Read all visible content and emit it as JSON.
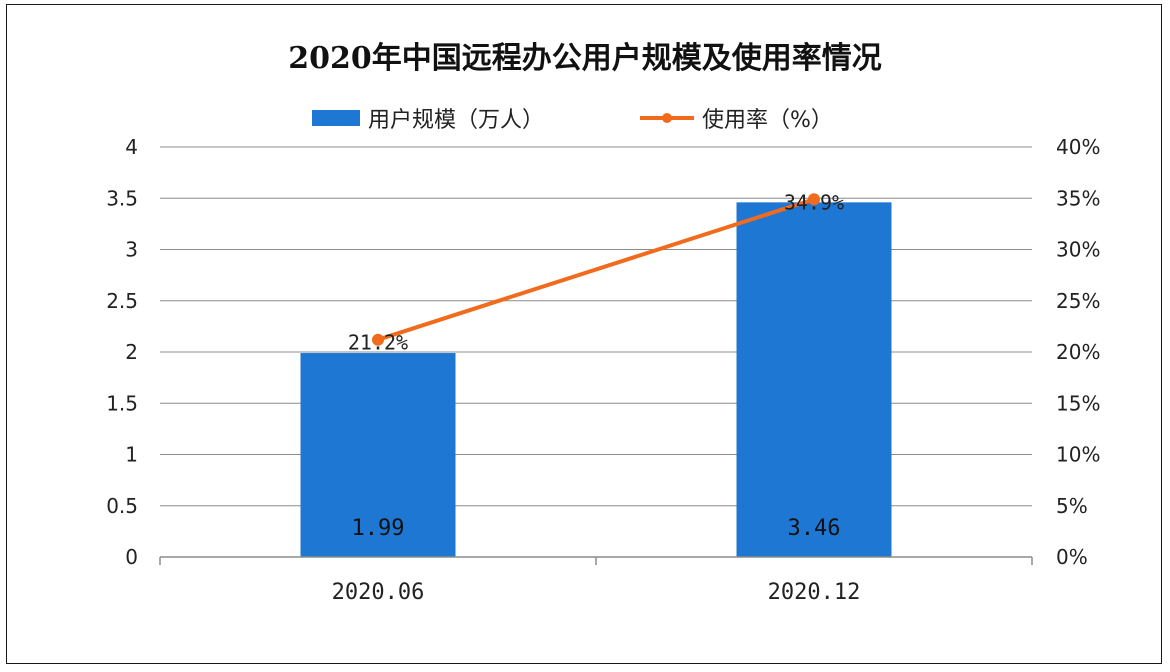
{
  "chart_data": {
    "type": "bar",
    "title": "2020年中国远程办公用户规模及使用率情况",
    "categories": [
      "2020.06",
      "2020.12"
    ],
    "series": [
      {
        "name": "用户规模（万人）",
        "type": "bar",
        "axis": "left",
        "color": "#1f77d4",
        "values": [
          1.99,
          3.46
        ],
        "labels": [
          "1.99",
          "3.46"
        ]
      },
      {
        "name": "使用率（%）",
        "type": "line",
        "axis": "right",
        "color": "#f26b1d",
        "values": [
          21.2,
          34.9
        ],
        "labels": [
          "21.2%",
          "34.9%"
        ]
      }
    ],
    "y_left": {
      "range": [
        0,
        4
      ],
      "ticks": [
        0,
        0.5,
        1,
        1.5,
        2,
        2.5,
        3,
        3.5,
        4
      ],
      "tick_labels": [
        "0",
        "0.5",
        "1",
        "1.5",
        "2",
        "2.5",
        "3",
        "3.5",
        "4"
      ]
    },
    "y_right": {
      "range": [
        0,
        40
      ],
      "ticks": [
        0,
        5,
        10,
        15,
        20,
        25,
        30,
        35,
        40
      ],
      "tick_labels": [
        "0%",
        "5%",
        "10%",
        "15%",
        "20%",
        "25%",
        "30%",
        "35%",
        "40%"
      ]
    },
    "grid": true,
    "legend_position": "top"
  }
}
